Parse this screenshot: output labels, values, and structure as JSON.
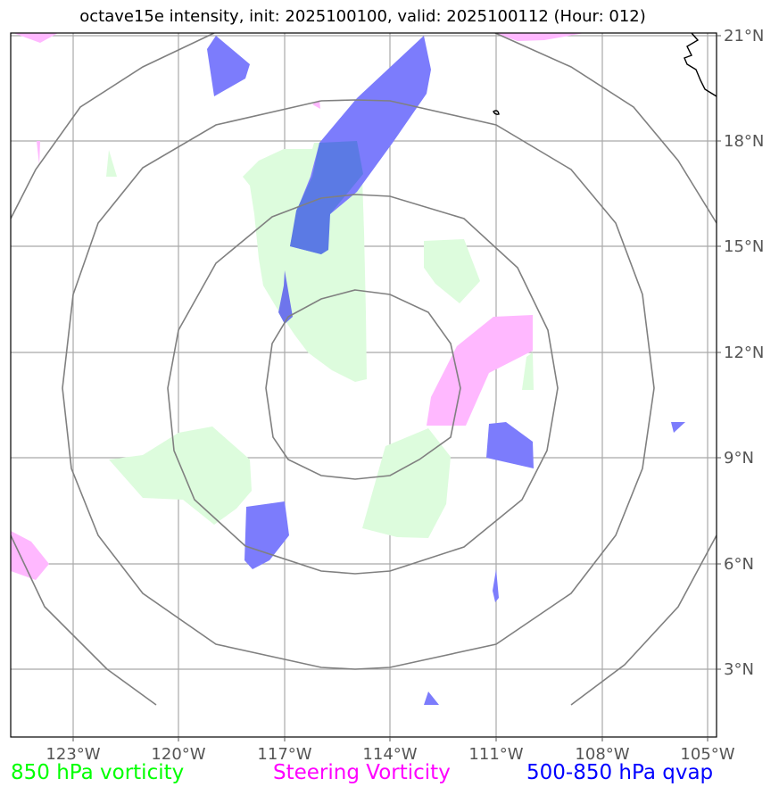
{
  "title": "octave15e intensity, init: 2025100100, valid: 2025100112 (Hour: 012)",
  "map": {
    "lon_labels": [
      "123°W",
      "120°W",
      "117°W",
      "114°W",
      "111°W",
      "108°W",
      "105°W"
    ],
    "lat_labels": [
      "21°N",
      "18°N",
      "15°N",
      "12°N",
      "9°N",
      "6°N",
      "3°N"
    ],
    "lon_values": [
      -123,
      -120,
      -117,
      -114,
      -111,
      -108,
      -105
    ],
    "lat_values": [
      21,
      18,
      15,
      12,
      9,
      6,
      3
    ],
    "extent": {
      "lon_min": -124.8,
      "lon_max": -104.8,
      "lat_min": 1.2,
      "lat_max": 21.1
    },
    "range_rings_deg": [
      3,
      6,
      9,
      12
    ],
    "ring_center": {
      "lon": -115,
      "lat": 11
    }
  },
  "legend": {
    "vorticity": {
      "label": "850 hPa vorticity",
      "color": "#00ff00",
      "fill": "#ddfcdd"
    },
    "steering": {
      "label": "Steering Vorticity",
      "color": "#ff00ff",
      "fill": "#ffb8ff"
    },
    "qvap": {
      "label": "500-850 hPa qvap",
      "color": "#0000ff",
      "fill": "#7c7cfc"
    }
  }
}
